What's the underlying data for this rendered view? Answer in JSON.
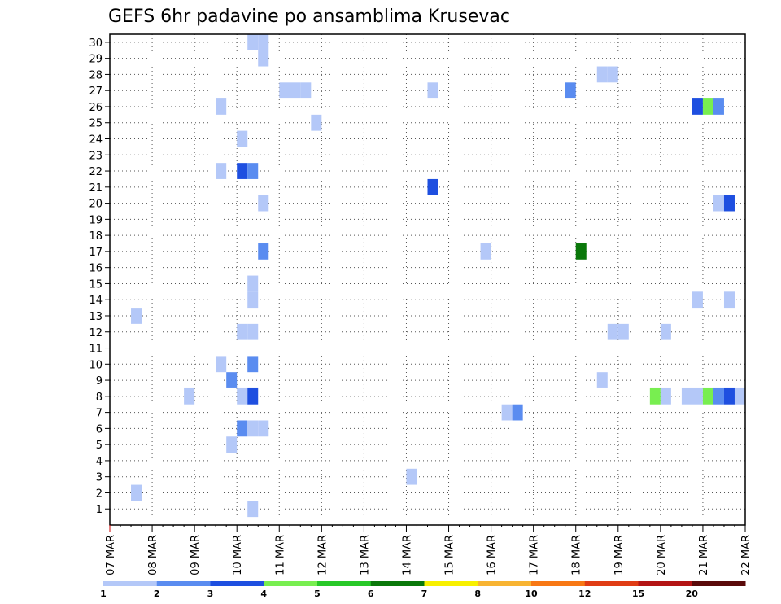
{
  "chart_data": {
    "type": "heatmap",
    "title": "GEFS 6hr padavine po ansamblima Krusevac",
    "xlabel": "",
    "ylabel": "",
    "x_ticks": [
      "07 MAR",
      "08 MAR",
      "09 MAR",
      "10 MAR",
      "11 MAR",
      "12 MAR",
      "13 MAR",
      "14 MAR",
      "15 MAR",
      "16 MAR",
      "17 MAR",
      "18 MAR",
      "19 MAR",
      "20 MAR",
      "21 MAR",
      "22 MAR"
    ],
    "x_range_days": [
      0,
      15
    ],
    "x_step_days": 0.25,
    "y_ticks": [
      "1",
      "2",
      "3",
      "4",
      "5",
      "6",
      "7",
      "8",
      "9",
      "10",
      "11",
      "12",
      "13",
      "14",
      "15",
      "16",
      "17",
      "18",
      "19",
      "20",
      "21",
      "22",
      "23",
      "24",
      "25",
      "26",
      "27",
      "28",
      "29",
      "30"
    ],
    "ylim": [
      0,
      30.5
    ],
    "grid": true,
    "colorbar": {
      "labels": [
        "1",
        "2",
        "3",
        "4",
        "5",
        "6",
        "7",
        "8",
        "10",
        "12",
        "15",
        "20"
      ],
      "colors": [
        "#b4c8f8",
        "#5a8cf0",
        "#1e4fe0",
        "#78ee50",
        "#28c828",
        "#0a780a",
        "#f8f000",
        "#f8b432",
        "#f87814",
        "#e03c14",
        "#b41414",
        "#5a0a0a"
      ]
    },
    "cells": [
      {
        "member": 30,
        "t": 3.25,
        "value": 1.5
      },
      {
        "member": 30,
        "t": 3.5,
        "value": 1.5
      },
      {
        "member": 29,
        "t": 3.5,
        "value": 1.5
      },
      {
        "member": 28,
        "t": 11.5,
        "value": 1.5
      },
      {
        "member": 28,
        "t": 11.75,
        "value": 1.5
      },
      {
        "member": 27,
        "t": 4.0,
        "value": 1.5
      },
      {
        "member": 27,
        "t": 4.25,
        "value": 1.5
      },
      {
        "member": 27,
        "t": 4.5,
        "value": 1.5
      },
      {
        "member": 27,
        "t": 7.5,
        "value": 1.5
      },
      {
        "member": 27,
        "t": 10.75,
        "value": 2.5
      },
      {
        "member": 26,
        "t": 2.5,
        "value": 1.5
      },
      {
        "member": 26,
        "t": 13.75,
        "value": 3.5
      },
      {
        "member": 26,
        "t": 14.0,
        "value": 4.5
      },
      {
        "member": 26,
        "t": 14.25,
        "value": 2.5
      },
      {
        "member": 25,
        "t": 4.75,
        "value": 1.5
      },
      {
        "member": 24,
        "t": 3.0,
        "value": 1.5
      },
      {
        "member": 22,
        "t": 2.5,
        "value": 1.5
      },
      {
        "member": 22,
        "t": 3.0,
        "value": 3.5
      },
      {
        "member": 22,
        "t": 3.25,
        "value": 2.5
      },
      {
        "member": 21,
        "t": 7.5,
        "value": 3.5
      },
      {
        "member": 20,
        "t": 3.5,
        "value": 1.5
      },
      {
        "member": 20,
        "t": 14.25,
        "value": 1.5
      },
      {
        "member": 20,
        "t": 14.5,
        "value": 3.5
      },
      {
        "member": 17,
        "t": 3.5,
        "value": 2.5
      },
      {
        "member": 17,
        "t": 8.75,
        "value": 1.5
      },
      {
        "member": 17,
        "t": 11.0,
        "value": 6.5
      },
      {
        "member": 15,
        "t": 3.25,
        "value": 1.5
      },
      {
        "member": 14,
        "t": 3.25,
        "value": 1.5
      },
      {
        "member": 14,
        "t": 13.75,
        "value": 1.5
      },
      {
        "member": 14,
        "t": 14.5,
        "value": 1.5
      },
      {
        "member": 13,
        "t": 0.5,
        "value": 1.5
      },
      {
        "member": 12,
        "t": 3.0,
        "value": 1.5
      },
      {
        "member": 12,
        "t": 3.25,
        "value": 1.5
      },
      {
        "member": 12,
        "t": 11.75,
        "value": 1.5
      },
      {
        "member": 12,
        "t": 12.0,
        "value": 1.5
      },
      {
        "member": 12,
        "t": 13.0,
        "value": 1.5
      },
      {
        "member": 10,
        "t": 2.5,
        "value": 1.5
      },
      {
        "member": 10,
        "t": 3.25,
        "value": 2.5
      },
      {
        "member": 9,
        "t": 2.75,
        "value": 2.5
      },
      {
        "member": 9,
        "t": 11.5,
        "value": 1.5
      },
      {
        "member": 8,
        "t": 1.75,
        "value": 1.5
      },
      {
        "member": 8,
        "t": 3.0,
        "value": 1.5
      },
      {
        "member": 8,
        "t": 3.25,
        "value": 3.5
      },
      {
        "member": 8,
        "t": 12.75,
        "value": 4.5
      },
      {
        "member": 8,
        "t": 13.0,
        "value": 1.5
      },
      {
        "member": 8,
        "t": 13.5,
        "value": 1.5
      },
      {
        "member": 8,
        "t": 13.75,
        "value": 1.5
      },
      {
        "member": 8,
        "t": 14.0,
        "value": 4.5
      },
      {
        "member": 8,
        "t": 14.25,
        "value": 2.5
      },
      {
        "member": 8,
        "t": 14.5,
        "value": 3.5
      },
      {
        "member": 8,
        "t": 14.75,
        "value": 1.5
      },
      {
        "member": 7,
        "t": 9.25,
        "value": 1.5
      },
      {
        "member": 7,
        "t": 9.5,
        "value": 2.5
      },
      {
        "member": 6,
        "t": 3.0,
        "value": 2.5
      },
      {
        "member": 6,
        "t": 3.25,
        "value": 1.5
      },
      {
        "member": 6,
        "t": 3.5,
        "value": 1.5
      },
      {
        "member": 5,
        "t": 2.75,
        "value": 1.5
      },
      {
        "member": 3,
        "t": 7.0,
        "value": 1.5
      },
      {
        "member": 2,
        "t": 0.5,
        "value": 1.5
      },
      {
        "member": 1,
        "t": 3.25,
        "value": 1.5
      }
    ]
  }
}
